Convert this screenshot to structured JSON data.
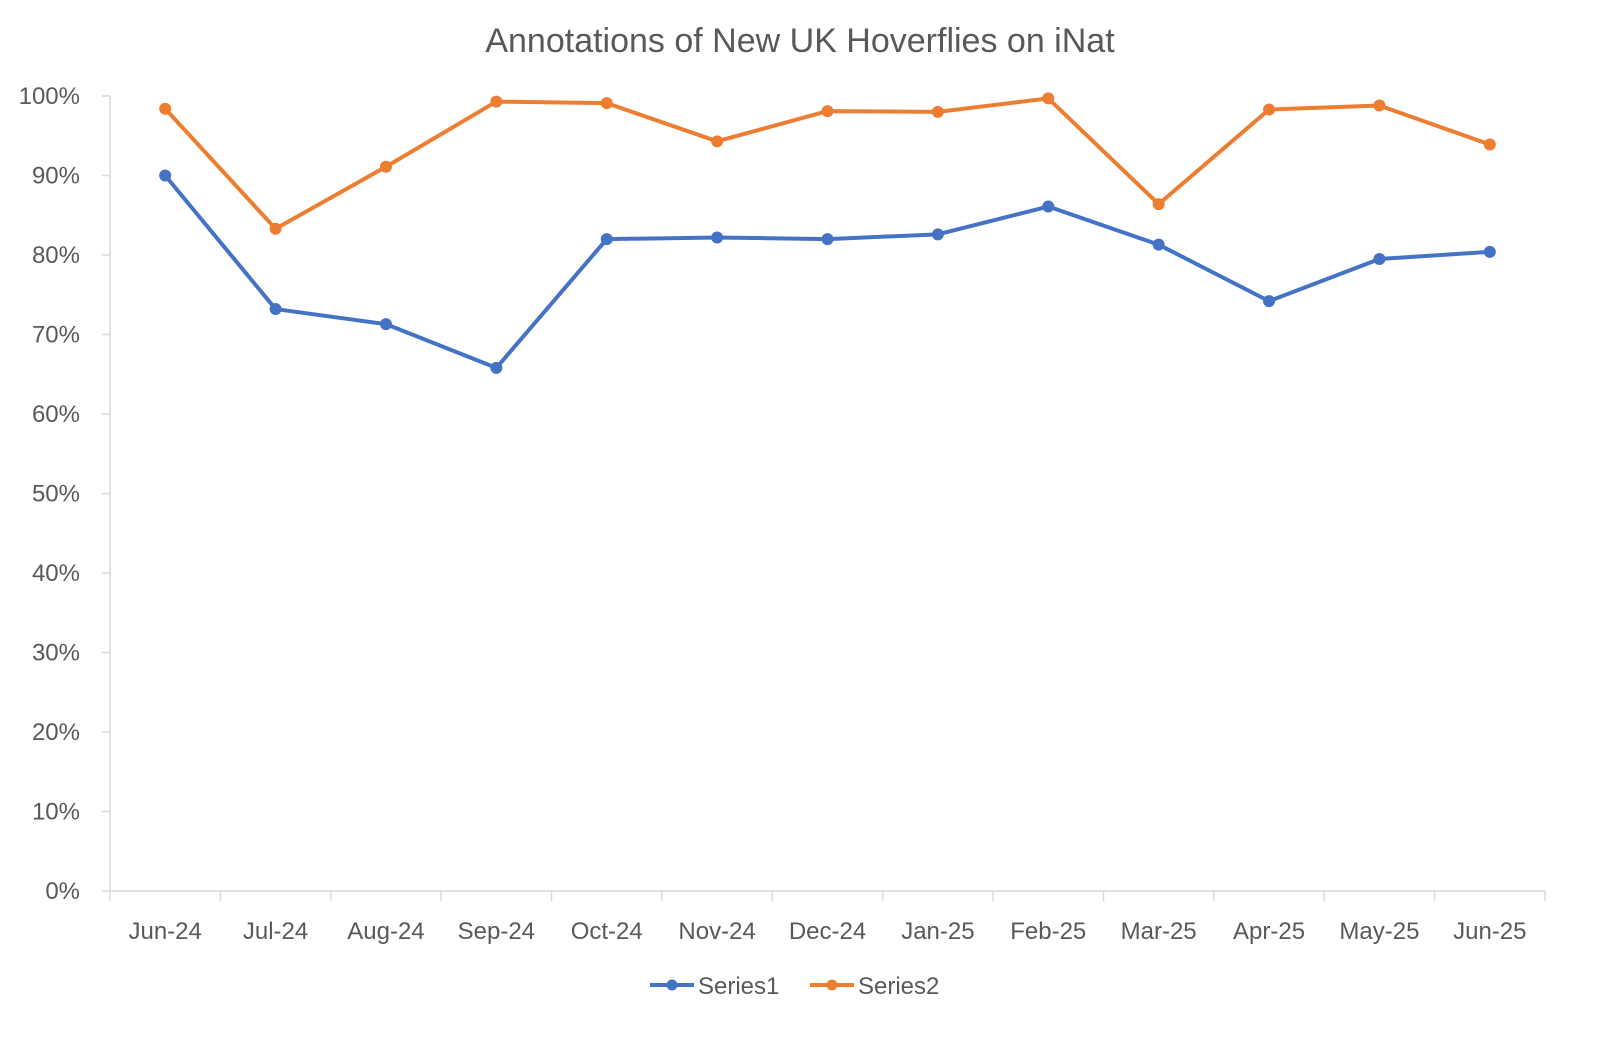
{
  "chart_data": {
    "type": "line",
    "title": "Annotations of New UK Hoverflies on iNat",
    "xlabel": "",
    "ylabel": "",
    "categories": [
      "Jun-24",
      "Jul-24",
      "Aug-24",
      "Sep-24",
      "Oct-24",
      "Nov-24",
      "Dec-24",
      "Jan-25",
      "Feb-25",
      "Mar-25",
      "Apr-25",
      "May-25",
      "Jun-25"
    ],
    "ylim": [
      0,
      1
    ],
    "yticks": [
      0,
      0.1,
      0.2,
      0.3,
      0.4,
      0.5,
      0.6,
      0.7,
      0.8,
      0.9,
      1.0
    ],
    "ytick_labels": [
      "0%",
      "10%",
      "20%",
      "30%",
      "40%",
      "50%",
      "60%",
      "70%",
      "80%",
      "90%",
      "100%"
    ],
    "grid": false,
    "legend_position": "bottom",
    "series": [
      {
        "name": "Series1",
        "color": "#4472C4",
        "values": [
          0.9,
          0.732,
          0.713,
          0.658,
          0.82,
          0.822,
          0.82,
          0.826,
          0.861,
          0.813,
          0.742,
          0.795,
          0.804
        ]
      },
      {
        "name": "Series2",
        "color": "#ED7D31",
        "values": [
          0.984,
          0.833,
          0.911,
          0.993,
          0.991,
          0.943,
          0.981,
          0.98,
          0.997,
          0.864,
          0.983,
          0.988,
          0.939
        ]
      }
    ]
  }
}
